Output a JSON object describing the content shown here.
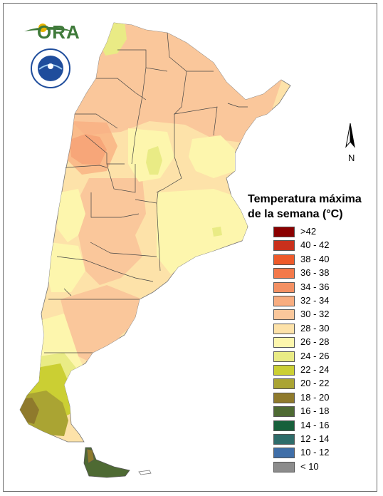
{
  "map": {
    "title_line1": "Temperatura máxima",
    "title_line2": "de la semana (°C)",
    "north_label": "N",
    "logo_text": "ORA",
    "seal_text": "SERVICIO METEOROLÓGICO NACIONAL · ARGENTINA"
  },
  "legend": {
    "items": [
      {
        "label": ">42",
        "color": "#8b0000"
      },
      {
        "label": "40 - 42",
        "color": "#c9301c"
      },
      {
        "label": "38 - 40",
        "color": "#ee5a2a"
      },
      {
        "label": "36 - 38",
        "color": "#f3794a"
      },
      {
        "label": "34 - 36",
        "color": "#f39063"
      },
      {
        "label": "32 - 34",
        "color": "#f8ad80"
      },
      {
        "label": "30 - 32",
        "color": "#fac79b"
      },
      {
        "label": "28 - 30",
        "color": "#fde2a9"
      },
      {
        "label": "26 - 28",
        "color": "#fdf6ad"
      },
      {
        "label": "24 - 26",
        "color": "#e9eb85"
      },
      {
        "label": "22 - 24",
        "color": "#cbcf33"
      },
      {
        "label": "20 - 22",
        "color": "#aaa433"
      },
      {
        "label": "18 - 20",
        "color": "#8f7a2c"
      },
      {
        "label": "16 - 18",
        "color": "#4e6a33"
      },
      {
        "label": "14 - 16",
        "color": "#17603b"
      },
      {
        "label": "12 - 14",
        "color": "#2e6c6a"
      },
      {
        "label": "10 - 12",
        "color": "#3f6ea8"
      },
      {
        "label": "< 10",
        "color": "#8c8c8c"
      }
    ]
  }
}
